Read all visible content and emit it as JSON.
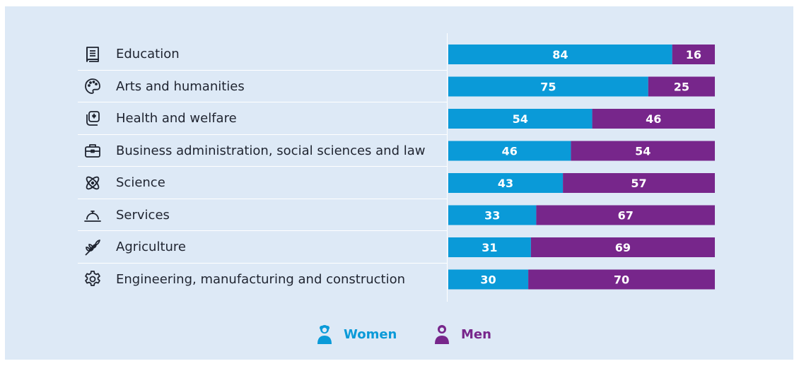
{
  "chart_data": {
    "type": "bar",
    "orientation": "horizontal",
    "stacked": true,
    "percent_stacked": true,
    "categories": [
      "Education",
      "Arts and humanities",
      "Health and welfare",
      "Business administration, social sciences and law",
      "Science",
      "Services",
      "Agriculture",
      "Engineering, manufacturing and construction"
    ],
    "category_icons": [
      "book-icon",
      "palette-icon",
      "medical-cross-icon",
      "briefcase-icon",
      "atom-icon",
      "service-bell-icon",
      "wheat-icon",
      "gear-icon"
    ],
    "series": [
      {
        "name": "Women",
        "values": [
          84,
          75,
          54,
          46,
          43,
          33,
          31,
          30
        ],
        "color": "#0a9ad8"
      },
      {
        "name": "Men",
        "values": [
          16,
          25,
          46,
          54,
          57,
          67,
          69,
          70
        ],
        "color": "#77268b"
      }
    ],
    "xlim": [
      0,
      100
    ],
    "legend_position": "bottom-center",
    "grid": false
  },
  "colors": {
    "background": "#dde9f6",
    "women": "#0a9ad8",
    "men": "#77268b",
    "label_text": "#1f2430",
    "bar_text": "#ffffff"
  }
}
